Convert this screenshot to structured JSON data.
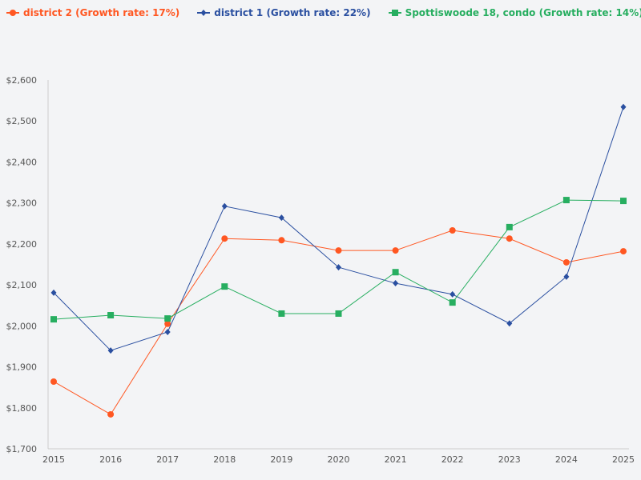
{
  "chart_data": {
    "type": "line",
    "x": [
      "2015",
      "2016",
      "2017",
      "2018",
      "2019",
      "2020",
      "2021",
      "2022",
      "2023",
      "2024",
      "2025"
    ],
    "ylim": [
      1700,
      2600
    ],
    "yticks": [
      1700,
      1800,
      1900,
      2000,
      2100,
      2200,
      2300,
      2400,
      2500,
      2600
    ],
    "ytick_labels": [
      "$1,700",
      "$1,800",
      "$1,900",
      "$2,000",
      "$2,100",
      "$2,200",
      "$2,300",
      "$2,400",
      "$2,500",
      "$2,600"
    ],
    "grid": false,
    "legend_placement": "top-left",
    "series": [
      {
        "name": "district 2 (Growth rate: 17%)",
        "color": "#ff5722",
        "marker": "circle",
        "values": [
          1864,
          1784,
          2005,
          2213,
          2209,
          2184,
          2184,
          2233,
          2213,
          2155,
          2182
        ]
      },
      {
        "name": "district 1 (Growth rate: 22%)",
        "color": "#2a4fa0",
        "marker": "diamond",
        "values": [
          2081,
          1940,
          1985,
          2292,
          2264,
          2143,
          2104,
          2077,
          2006,
          2120,
          2534
        ]
      },
      {
        "name": "Spottiswoode 18, condo (Growth rate: 14%)",
        "color": "#27ae60",
        "marker": "square",
        "values": [
          2016,
          2026,
          2018,
          2096,
          2030,
          2030,
          2131,
          2057,
          2241,
          2307,
          2305
        ]
      }
    ]
  }
}
